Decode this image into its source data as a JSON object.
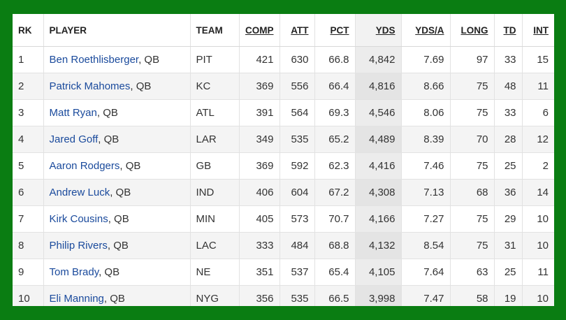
{
  "headers": [
    "RK",
    "PLAYER",
    "TEAM",
    "COMP",
    "ATT",
    "PCT",
    "YDS",
    "YDS/A",
    "LONG",
    "TD",
    "INT"
  ],
  "rows": [
    {
      "rk": "1",
      "name": "Ben Roethlisberger",
      "pos": ", QB",
      "team": "PIT",
      "comp": "421",
      "att": "630",
      "pct": "66.8",
      "yds": "4,842",
      "ydsa": "7.69",
      "long": "97",
      "td": "33",
      "int": "15"
    },
    {
      "rk": "2",
      "name": "Patrick Mahomes",
      "pos": ", QB",
      "team": "KC",
      "comp": "369",
      "att": "556",
      "pct": "66.4",
      "yds": "4,816",
      "ydsa": "8.66",
      "long": "75",
      "td": "48",
      "int": "11"
    },
    {
      "rk": "3",
      "name": "Matt Ryan",
      "pos": ", QB",
      "team": "ATL",
      "comp": "391",
      "att": "564",
      "pct": "69.3",
      "yds": "4,546",
      "ydsa": "8.06",
      "long": "75",
      "td": "33",
      "int": "6"
    },
    {
      "rk": "4",
      "name": "Jared Goff",
      "pos": ", QB",
      "team": "LAR",
      "comp": "349",
      "att": "535",
      "pct": "65.2",
      "yds": "4,489",
      "ydsa": "8.39",
      "long": "70",
      "td": "28",
      "int": "12"
    },
    {
      "rk": "5",
      "name": "Aaron Rodgers",
      "pos": ", QB",
      "team": "GB",
      "comp": "369",
      "att": "592",
      "pct": "62.3",
      "yds": "4,416",
      "ydsa": "7.46",
      "long": "75",
      "td": "25",
      "int": "2"
    },
    {
      "rk": "6",
      "name": "Andrew Luck",
      "pos": ", QB",
      "team": "IND",
      "comp": "406",
      "att": "604",
      "pct": "67.2",
      "yds": "4,308",
      "ydsa": "7.13",
      "long": "68",
      "td": "36",
      "int": "14"
    },
    {
      "rk": "7",
      "name": "Kirk Cousins",
      "pos": ", QB",
      "team": "MIN",
      "comp": "405",
      "att": "573",
      "pct": "70.7",
      "yds": "4,166",
      "ydsa": "7.27",
      "long": "75",
      "td": "29",
      "int": "10"
    },
    {
      "rk": "8",
      "name": "Philip Rivers",
      "pos": ", QB",
      "team": "LAC",
      "comp": "333",
      "att": "484",
      "pct": "68.8",
      "yds": "4,132",
      "ydsa": "8.54",
      "long": "75",
      "td": "31",
      "int": "10"
    },
    {
      "rk": "9",
      "name": "Tom Brady",
      "pos": ", QB",
      "team": "NE",
      "comp": "351",
      "att": "537",
      "pct": "65.4",
      "yds": "4,105",
      "ydsa": "7.64",
      "long": "63",
      "td": "25",
      "int": "11"
    },
    {
      "rk": "10",
      "name": "Eli Manning",
      "pos": ", QB",
      "team": "NYG",
      "comp": "356",
      "att": "535",
      "pct": "66.5",
      "yds": "3,998",
      "ydsa": "7.47",
      "long": "58",
      "td": "19",
      "int": "10"
    }
  ]
}
